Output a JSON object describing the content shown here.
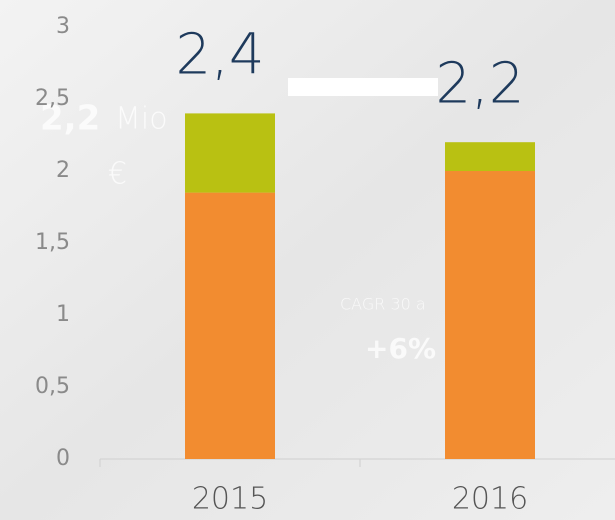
{
  "chart_data": {
    "type": "stacked-bar",
    "categories": [
      "2015",
      "2016"
    ],
    "series": [
      {
        "color": "#f28c30",
        "values": [
          1.85,
          2.0
        ]
      },
      {
        "color": "#b9c112",
        "values": [
          0.55,
          0.2
        ]
      }
    ],
    "totals": {
      "values": [
        2.4,
        2.2
      ],
      "value_labels": [
        "2,4",
        "2,2"
      ]
    },
    "ylim": [
      0,
      3
    ],
    "yticks": [
      0,
      {
        "value": 0.5,
        "label": "0,5"
      },
      1,
      {
        "value": 1.5,
        "label": "1,5"
      },
      2,
      {
        "value": 2.5,
        "label": "2,5"
      },
      3
    ],
    "background_texts": [
      "2,2",
      "Mio",
      "€",
      "CAGR 30 a",
      "+6%"
    ]
  }
}
